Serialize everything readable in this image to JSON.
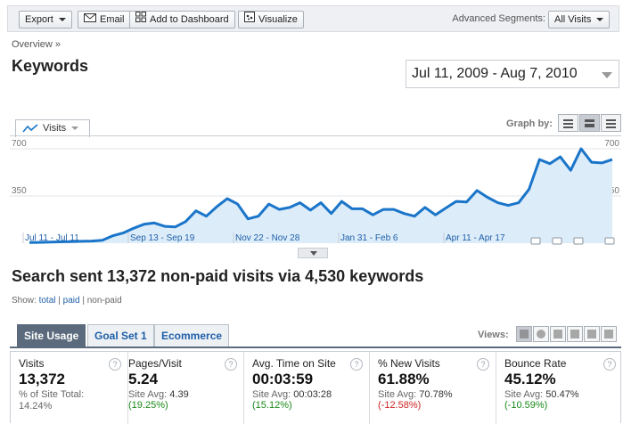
{
  "toolbar": {
    "export_label": "Export",
    "email_label": "Email",
    "dashboard_label": "Add to Dashboard",
    "visualize_label": "Visualize",
    "segments_label": "Advanced Segments:",
    "segments_value": "All Visits"
  },
  "breadcrumb": "Overview »",
  "page_title": "Keywords",
  "date_range": "Jul 11, 2009 - Aug 7, 2010",
  "graph_by_label": "Graph by:",
  "metric_selector": "Visits",
  "chart_data": {
    "type": "area",
    "y_ticks": [
      "700",
      "350"
    ],
    "ylim": [
      0,
      700
    ],
    "x_labels": [
      "Jul 11 - Jul 11",
      "Sep 13 - Sep 19",
      "Nov 22 - Nov 28",
      "Jan 31 - Feb 6",
      "Apr 11 - Apr 17"
    ],
    "series": [
      {
        "values": [
          5,
          6,
          8,
          10,
          12,
          14,
          16,
          22,
          55,
          75,
          110,
          140,
          150,
          125,
          120,
          160,
          240,
          200,
          270,
          330,
          290,
          180,
          200,
          290,
          250,
          265,
          300,
          245,
          300,
          220,
          310,
          255,
          255,
          210,
          250,
          250,
          220,
          200,
          265,
          210,
          260,
          310,
          305,
          390,
          340,
          300,
          280,
          300,
          400,
          620,
          590,
          640,
          540,
          700,
          600,
          595,
          620
        ]
      }
    ],
    "color": "#1a75c9",
    "fill": "#dcecf9",
    "grid": true
  },
  "headline": "Search sent 13,372 non-paid visits via 4,530 keywords",
  "show": {
    "label": "Show:",
    "total": "total",
    "paid": "paid",
    "non_paid": "non-paid"
  },
  "tabs": [
    "Site Usage",
    "Goal Set 1",
    "Ecommerce"
  ],
  "views_label": "Views:",
  "stats": [
    {
      "label": "Visits",
      "value": "13,372",
      "sub_label": "% of Site Total:",
      "sub_value": "14.24%",
      "pct": "",
      "pct_color": ""
    },
    {
      "label": "Pages/Visit",
      "value": "5.24",
      "sub_label": "Site Avg:",
      "sub_value": "4.39",
      "pct": "(19.25%)",
      "pct_color": "green"
    },
    {
      "label": "Avg. Time on Site",
      "value": "00:03:59",
      "sub_label": "Site Avg:",
      "sub_value": "00:03:28",
      "pct": "(15.12%)",
      "pct_color": "green"
    },
    {
      "label": "% New Visits",
      "value": "61.88%",
      "sub_label": "Site Avg:",
      "sub_value": "70.78%",
      "pct": "(-12.58%)",
      "pct_color": "red"
    },
    {
      "label": "Bounce Rate",
      "value": "45.12%",
      "sub_label": "Site Avg:",
      "sub_value": "50.47%",
      "pct": "(-10.59%)",
      "pct_color": "green"
    }
  ]
}
